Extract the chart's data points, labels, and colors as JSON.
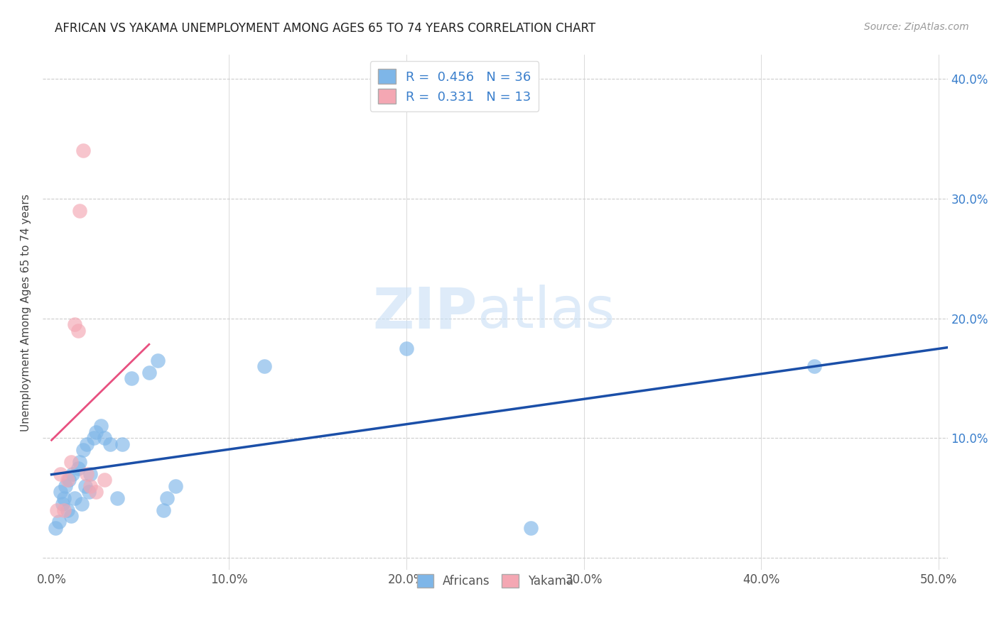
{
  "title": "AFRICAN VS YAKAMA UNEMPLOYMENT AMONG AGES 65 TO 74 YEARS CORRELATION CHART",
  "source": "Source: ZipAtlas.com",
  "xlabel": "",
  "ylabel": "Unemployment Among Ages 65 to 74 years",
  "xlim": [
    -0.005,
    0.505
  ],
  "ylim": [
    -0.01,
    0.42
  ],
  "xticks": [
    0.0,
    0.1,
    0.2,
    0.3,
    0.4,
    0.5
  ],
  "yticks": [
    0.0,
    0.1,
    0.2,
    0.3,
    0.4
  ],
  "xtick_labels": [
    "0.0%",
    "10.0%",
    "20.0%",
    "30.0%",
    "40.0%",
    "50.0%"
  ],
  "ytick_labels_right": [
    "",
    "10.0%",
    "20.0%",
    "30.0%",
    "40.0%"
  ],
  "african_color": "#7EB6E8",
  "yakama_color": "#F4A7B3",
  "line_african_color": "#1B4FA8",
  "line_yakama_color": "#E85080",
  "grid_color": "#CCCCCC",
  "watermark_zip": "ZIP",
  "watermark_atlas": "atlas",
  "R_african": 0.456,
  "N_african": 36,
  "R_yakama": 0.331,
  "N_yakama": 13,
  "africans_x": [
    0.002,
    0.004,
    0.005,
    0.006,
    0.007,
    0.008,
    0.009,
    0.01,
    0.011,
    0.012,
    0.013,
    0.015,
    0.016,
    0.017,
    0.018,
    0.019,
    0.02,
    0.021,
    0.022,
    0.024,
    0.025,
    0.028,
    0.03,
    0.033,
    0.037,
    0.04,
    0.045,
    0.055,
    0.06,
    0.063,
    0.065,
    0.07,
    0.12,
    0.2,
    0.27,
    0.43
  ],
  "africans_y": [
    0.025,
    0.03,
    0.055,
    0.045,
    0.05,
    0.06,
    0.04,
    0.065,
    0.035,
    0.07,
    0.05,
    0.075,
    0.08,
    0.045,
    0.09,
    0.06,
    0.095,
    0.055,
    0.07,
    0.1,
    0.105,
    0.11,
    0.1,
    0.095,
    0.05,
    0.095,
    0.15,
    0.155,
    0.165,
    0.04,
    0.05,
    0.06,
    0.16,
    0.175,
    0.025,
    0.16
  ],
  "yakama_x": [
    0.003,
    0.005,
    0.007,
    0.009,
    0.011,
    0.013,
    0.015,
    0.016,
    0.018,
    0.02,
    0.022,
    0.025,
    0.03
  ],
  "yakama_y": [
    0.04,
    0.07,
    0.04,
    0.065,
    0.08,
    0.195,
    0.19,
    0.29,
    0.34,
    0.07,
    0.06,
    0.055,
    0.065
  ],
  "yakama_line_x": [
    0.0,
    0.055
  ],
  "african_line_x": [
    0.0,
    0.505
  ]
}
